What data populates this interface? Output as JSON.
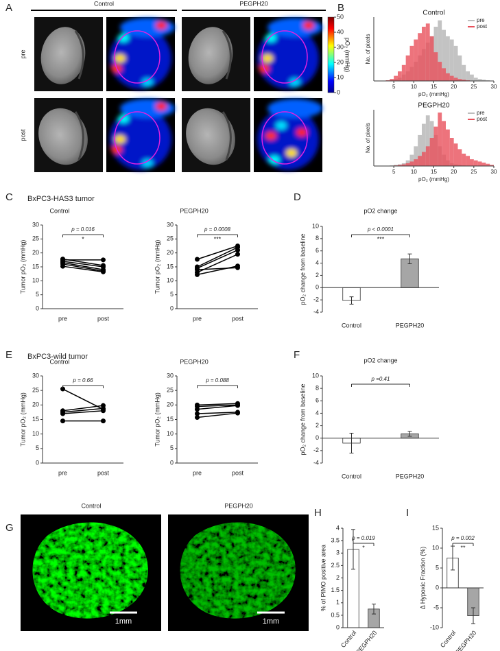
{
  "labels": [
    "A",
    "B",
    "C",
    "D",
    "E",
    "F",
    "G",
    "H",
    "I"
  ],
  "headings": [
    "BxPC3-HAS3 tumor",
    "BxPC3-wild tumor"
  ],
  "panel_a": {
    "columns": [
      "Control",
      "PEGPH20"
    ],
    "rows": [
      "pre",
      "post"
    ],
    "colorbar": {
      "lim": [
        0,
        50
      ],
      "ticks": [
        0,
        10,
        20,
        30,
        40,
        50
      ],
      "label": "pO₂ (mmHg)"
    }
  },
  "panel_g": {
    "columns": [
      "Control",
      "PEGPH20"
    ],
    "scale_bar": "1mm"
  },
  "chart_data": [
    {
      "type": "histogram",
      "title": "Control",
      "xlabel": "pO₂ (mmHg)",
      "ylabel": "No. of pixels",
      "bins": [
        2,
        3,
        4,
        5,
        6,
        7,
        8,
        9,
        10,
        11,
        12,
        13,
        14,
        15,
        16,
        17,
        18,
        19,
        20,
        21,
        22,
        23,
        24,
        25,
        26,
        27,
        28,
        29,
        30
      ],
      "xlim": [
        0,
        30
      ],
      "xticks": [
        5,
        10,
        15,
        20,
        25,
        30
      ],
      "ylim": [
        0,
        100
      ],
      "legend": "upper right",
      "series": [
        {
          "name": "pre",
          "color": "#bdbdbd",
          "values": [
            0,
            1,
            2,
            3,
            5,
            10,
            15,
            22,
            30,
            40,
            50,
            60,
            70,
            85,
            95,
            80,
            70,
            65,
            55,
            40,
            25,
            15,
            10,
            5,
            3,
            2,
            1,
            0
          ]
        },
        {
          "name": "post",
          "color": "#e8505b",
          "values": [
            0,
            1,
            3,
            8,
            15,
            25,
            40,
            55,
            65,
            75,
            85,
            90,
            70,
            45,
            30,
            20,
            12,
            8,
            5,
            3,
            2,
            1,
            0,
            0,
            0,
            0,
            0,
            0
          ]
        }
      ]
    },
    {
      "type": "histogram",
      "title": "PEGPH20",
      "xlabel": "pO₂ (mmHg)",
      "ylabel": "No. of pixels",
      "bins": [
        2,
        3,
        4,
        5,
        6,
        7,
        8,
        9,
        10,
        11,
        12,
        13,
        14,
        15,
        16,
        17,
        18,
        19,
        20,
        21,
        22,
        23,
        24,
        25,
        26,
        27,
        28,
        29,
        30
      ],
      "xlim": [
        0,
        30
      ],
      "xticks": [
        5,
        10,
        15,
        20,
        25,
        30
      ],
      "ylim": [
        0,
        100
      ],
      "legend": "upper right",
      "series": [
        {
          "name": "pre",
          "color": "#bdbdbd",
          "values": [
            0,
            0,
            1,
            2,
            3,
            5,
            10,
            20,
            35,
            55,
            75,
            90,
            80,
            55,
            35,
            20,
            10,
            5,
            3,
            2,
            1,
            0,
            0,
            0,
            0,
            0,
            0,
            0
          ]
        },
        {
          "name": "post",
          "color": "#e8505b",
          "values": [
            0,
            0,
            0,
            1,
            2,
            3,
            5,
            8,
            12,
            18,
            25,
            35,
            50,
            70,
            95,
            80,
            65,
            50,
            40,
            30,
            22,
            18,
            12,
            10,
            8,
            6,
            4,
            2
          ]
        }
      ]
    },
    {
      "type": "line",
      "title": "Control",
      "ylabel": "Tumor pO₂ (mmHg)",
      "categories": [
        "pre",
        "post"
      ],
      "ylim": [
        0,
        30
      ],
      "yticks": [
        0,
        5,
        10,
        15,
        20,
        25,
        30
      ],
      "color": "#000000",
      "annotations": [
        "p = 0.016",
        "*"
      ],
      "series": [
        {
          "values": [
            17.5,
            17.5
          ]
        },
        {
          "values": [
            17,
            15
          ]
        },
        {
          "values": [
            16.5,
            14
          ]
        },
        {
          "values": [
            16,
            13.5
          ]
        },
        {
          "values": [
            15.2,
            13.2
          ]
        },
        {
          "values": [
            17.8,
            15.5
          ]
        }
      ]
    },
    {
      "type": "line",
      "title": "PEGPH20",
      "ylabel": "Tumor pO₂ (mmHg)",
      "categories": [
        "pre",
        "post"
      ],
      "ylim": [
        0,
        30
      ],
      "yticks": [
        0,
        5,
        10,
        15,
        20,
        25,
        30
      ],
      "color": "#000000",
      "annotations": [
        "p = 0.0008",
        "***"
      ],
      "series": [
        {
          "values": [
            17.7,
            22.5
          ]
        },
        {
          "values": [
            15,
            22
          ]
        },
        {
          "values": [
            14.5,
            21
          ]
        },
        {
          "values": [
            13,
            19.5
          ]
        },
        {
          "values": [
            12.2,
            15.3
          ]
        },
        {
          "values": [
            14,
            14.7
          ]
        }
      ]
    },
    {
      "type": "bar",
      "title": "pO2 change",
      "ylabel": "pO₂ change from baseline",
      "categories": [
        "Control",
        "PEGPH20"
      ],
      "values": [
        -2.1,
        4.7
      ],
      "errors": [
        0.6,
        0.8
      ],
      "colors": [
        "#ffffff",
        "#a6a6a6"
      ],
      "ylim": [
        -4,
        10
      ],
      "yticks": [
        -4,
        -2,
        0,
        2,
        4,
        6,
        8,
        10
      ],
      "annotations": [
        "p < 0.0001",
        "***"
      ]
    },
    {
      "type": "line",
      "title": "Control",
      "ylabel": "Tumor pO₂ (mmHg)",
      "categories": [
        "pre",
        "post"
      ],
      "ylim": [
        0,
        30
      ],
      "yticks": [
        0,
        5,
        10,
        15,
        20,
        25,
        30
      ],
      "color": "#000000",
      "annotations": [
        "p = 0.66"
      ],
      "series": [
        {
          "values": [
            25.5,
            18.5
          ]
        },
        {
          "values": [
            18,
            19.8
          ]
        },
        {
          "values": [
            17.5,
            18.8
          ]
        },
        {
          "values": [
            17,
            18
          ]
        },
        {
          "values": [
            14.5,
            14.5
          ]
        }
      ]
    },
    {
      "type": "line",
      "title": "PEGPH20",
      "ylabel": "Tumor pO₂ (mmHg)",
      "categories": [
        "pre",
        "post"
      ],
      "ylim": [
        0,
        30
      ],
      "yticks": [
        0,
        5,
        10,
        15,
        20,
        25,
        30
      ],
      "color": "#000000",
      "annotations": [
        "p = 0.088"
      ],
      "series": [
        {
          "values": [
            20,
            20.5
          ]
        },
        {
          "values": [
            19.5,
            20
          ]
        },
        {
          "values": [
            18.5,
            19.8
          ]
        },
        {
          "values": [
            17,
            17.5
          ]
        },
        {
          "values": [
            15.7,
            17.2
          ]
        }
      ]
    },
    {
      "type": "bar",
      "title": "pO2 change",
      "ylabel": "pO₂ change from baseline",
      "categories": [
        "Control",
        "PEGPH20"
      ],
      "values": [
        -0.8,
        0.7
      ],
      "errors": [
        1.6,
        0.4
      ],
      "colors": [
        "#ffffff",
        "#a6a6a6"
      ],
      "ylim": [
        -4,
        10
      ],
      "yticks": [
        -4,
        -2,
        0,
        2,
        4,
        6,
        8,
        10
      ],
      "annotations": [
        "p =0.41"
      ]
    },
    {
      "type": "bar",
      "ylabel": "% of PIMO positive area",
      "categories": [
        "Control",
        "PEGPH20"
      ],
      "values": [
        3.15,
        0.75
      ],
      "errors": [
        0.8,
        0.2
      ],
      "colors": [
        "#ffffff",
        "#a6a6a6"
      ],
      "ylim": [
        0,
        4
      ],
      "yticks": [
        0,
        0.5,
        1,
        1.5,
        2,
        2.5,
        3,
        3.5,
        4
      ],
      "annotations": [
        "p = 0.019",
        "*"
      ]
    },
    {
      "type": "bar",
      "ylabel": "Δ Hypoxic Fraction (%)",
      "categories": [
        "Control",
        "PEGPH20"
      ],
      "values": [
        7.5,
        -7
      ],
      "errors": [
        3,
        2
      ],
      "colors": [
        "#ffffff",
        "#a6a6a6"
      ],
      "ylim": [
        -10,
        15
      ],
      "yticks": [
        -10,
        -5,
        0,
        5,
        10,
        15
      ],
      "annotations": [
        "p = 0.002",
        "**"
      ]
    }
  ]
}
